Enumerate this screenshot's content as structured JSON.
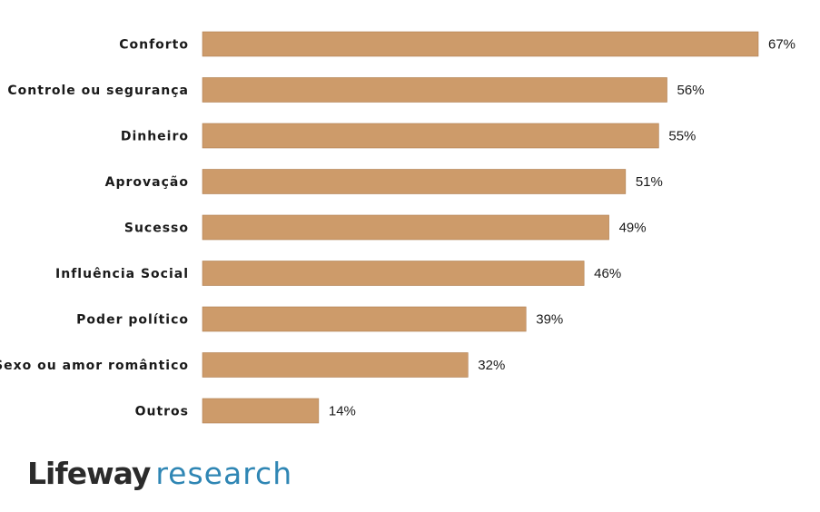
{
  "chart_data": {
    "type": "bar",
    "orientation": "horizontal",
    "categories": [
      "Conforto",
      "Controle ou segurança",
      "Dinheiro",
      "Aprovação",
      "Sucesso",
      "Influência Social",
      "Poder político",
      "Sexo ou amor romântico",
      "Outros"
    ],
    "values": [
      67,
      56,
      55,
      51,
      49,
      46,
      39,
      32,
      14
    ],
    "value_labels": [
      "67%",
      "56%",
      "55%",
      "51%",
      "49%",
      "46%",
      "39%",
      "32%",
      "14%"
    ],
    "xlim": [
      0,
      67
    ],
    "grid": false,
    "bar_color": "#cd9b6a"
  },
  "logo": {
    "brand": "Lifeway",
    "sub": "research"
  },
  "colors": {
    "brand_dark": "#2b2b2b",
    "brand_blue": "#2f86b4"
  }
}
